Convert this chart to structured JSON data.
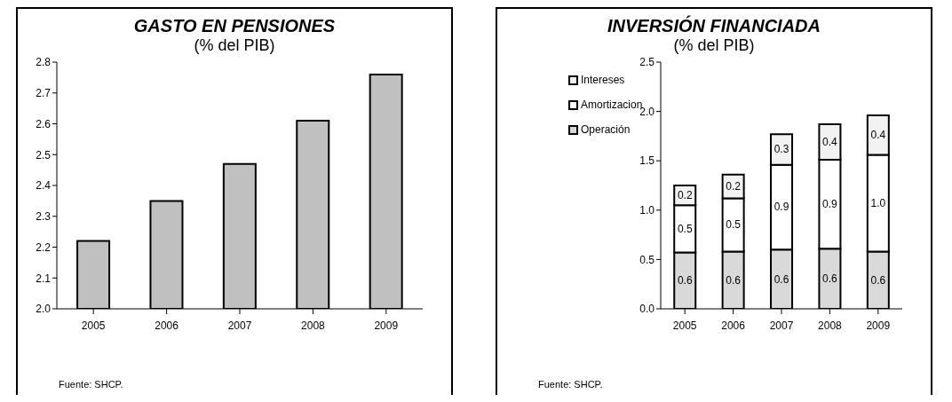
{
  "chart_data": [
    {
      "type": "bar",
      "title": "GASTO EN PENSIONES",
      "subtitle": "(% del PIB)",
      "categories": [
        "2005",
        "2006",
        "2007",
        "2008",
        "2009"
      ],
      "values": [
        2.22,
        2.35,
        2.47,
        2.61,
        2.76
      ],
      "color": "#c0c0c0",
      "ylim": [
        2.0,
        2.8
      ],
      "yticks": [
        {
          "value": 2.0,
          "label": "2.0"
        },
        2.1,
        2.2,
        2.3,
        2.4,
        2.5,
        2.6,
        2.7,
        2.8
      ],
      "grid": false,
      "legend": false,
      "annotations": [
        "Fuente: SHCP."
      ]
    },
    {
      "type": "bar",
      "title": "INVERSIÓN FINANCIADA",
      "subtitle": "(% del PIB)",
      "categories": [
        "2005",
        "2006",
        "2007",
        "2008",
        "2009"
      ],
      "stacked": true,
      "series": [
        {
          "name": "Operación",
          "color": "#d9d9d9",
          "values": [
            0.57,
            0.58,
            0.6,
            0.61,
            0.58
          ],
          "value_labels": [
            "0.6",
            "0.6",
            "0.6",
            "0.6",
            "0.6"
          ]
        },
        {
          "name": "Amortizacion",
          "color": "#ffffff",
          "values": [
            0.48,
            0.54,
            0.86,
            0.9,
            0.98
          ],
          "value_labels": [
            "0.5",
            "0.5",
            "0.9",
            "0.9",
            "1.0"
          ]
        },
        {
          "name": "Intereses",
          "color": "#f2f2f2",
          "values": [
            0.2,
            0.24,
            0.31,
            0.36,
            0.4
          ],
          "value_labels": [
            "0.2",
            "0.2",
            "0.3",
            "0.4",
            "0.4"
          ]
        }
      ],
      "ylim": [
        0,
        2.5
      ],
      "yticks": [
        {
          "value": 0,
          "label": "0.0"
        },
        0.5,
        {
          "value": 1,
          "label": "1.0"
        },
        1.5,
        {
          "value": 2,
          "label": "2.0"
        },
        2.5
      ],
      "grid": false,
      "legend": "top left",
      "annotations": [
        "Fuente: SHCP."
      ]
    }
  ]
}
